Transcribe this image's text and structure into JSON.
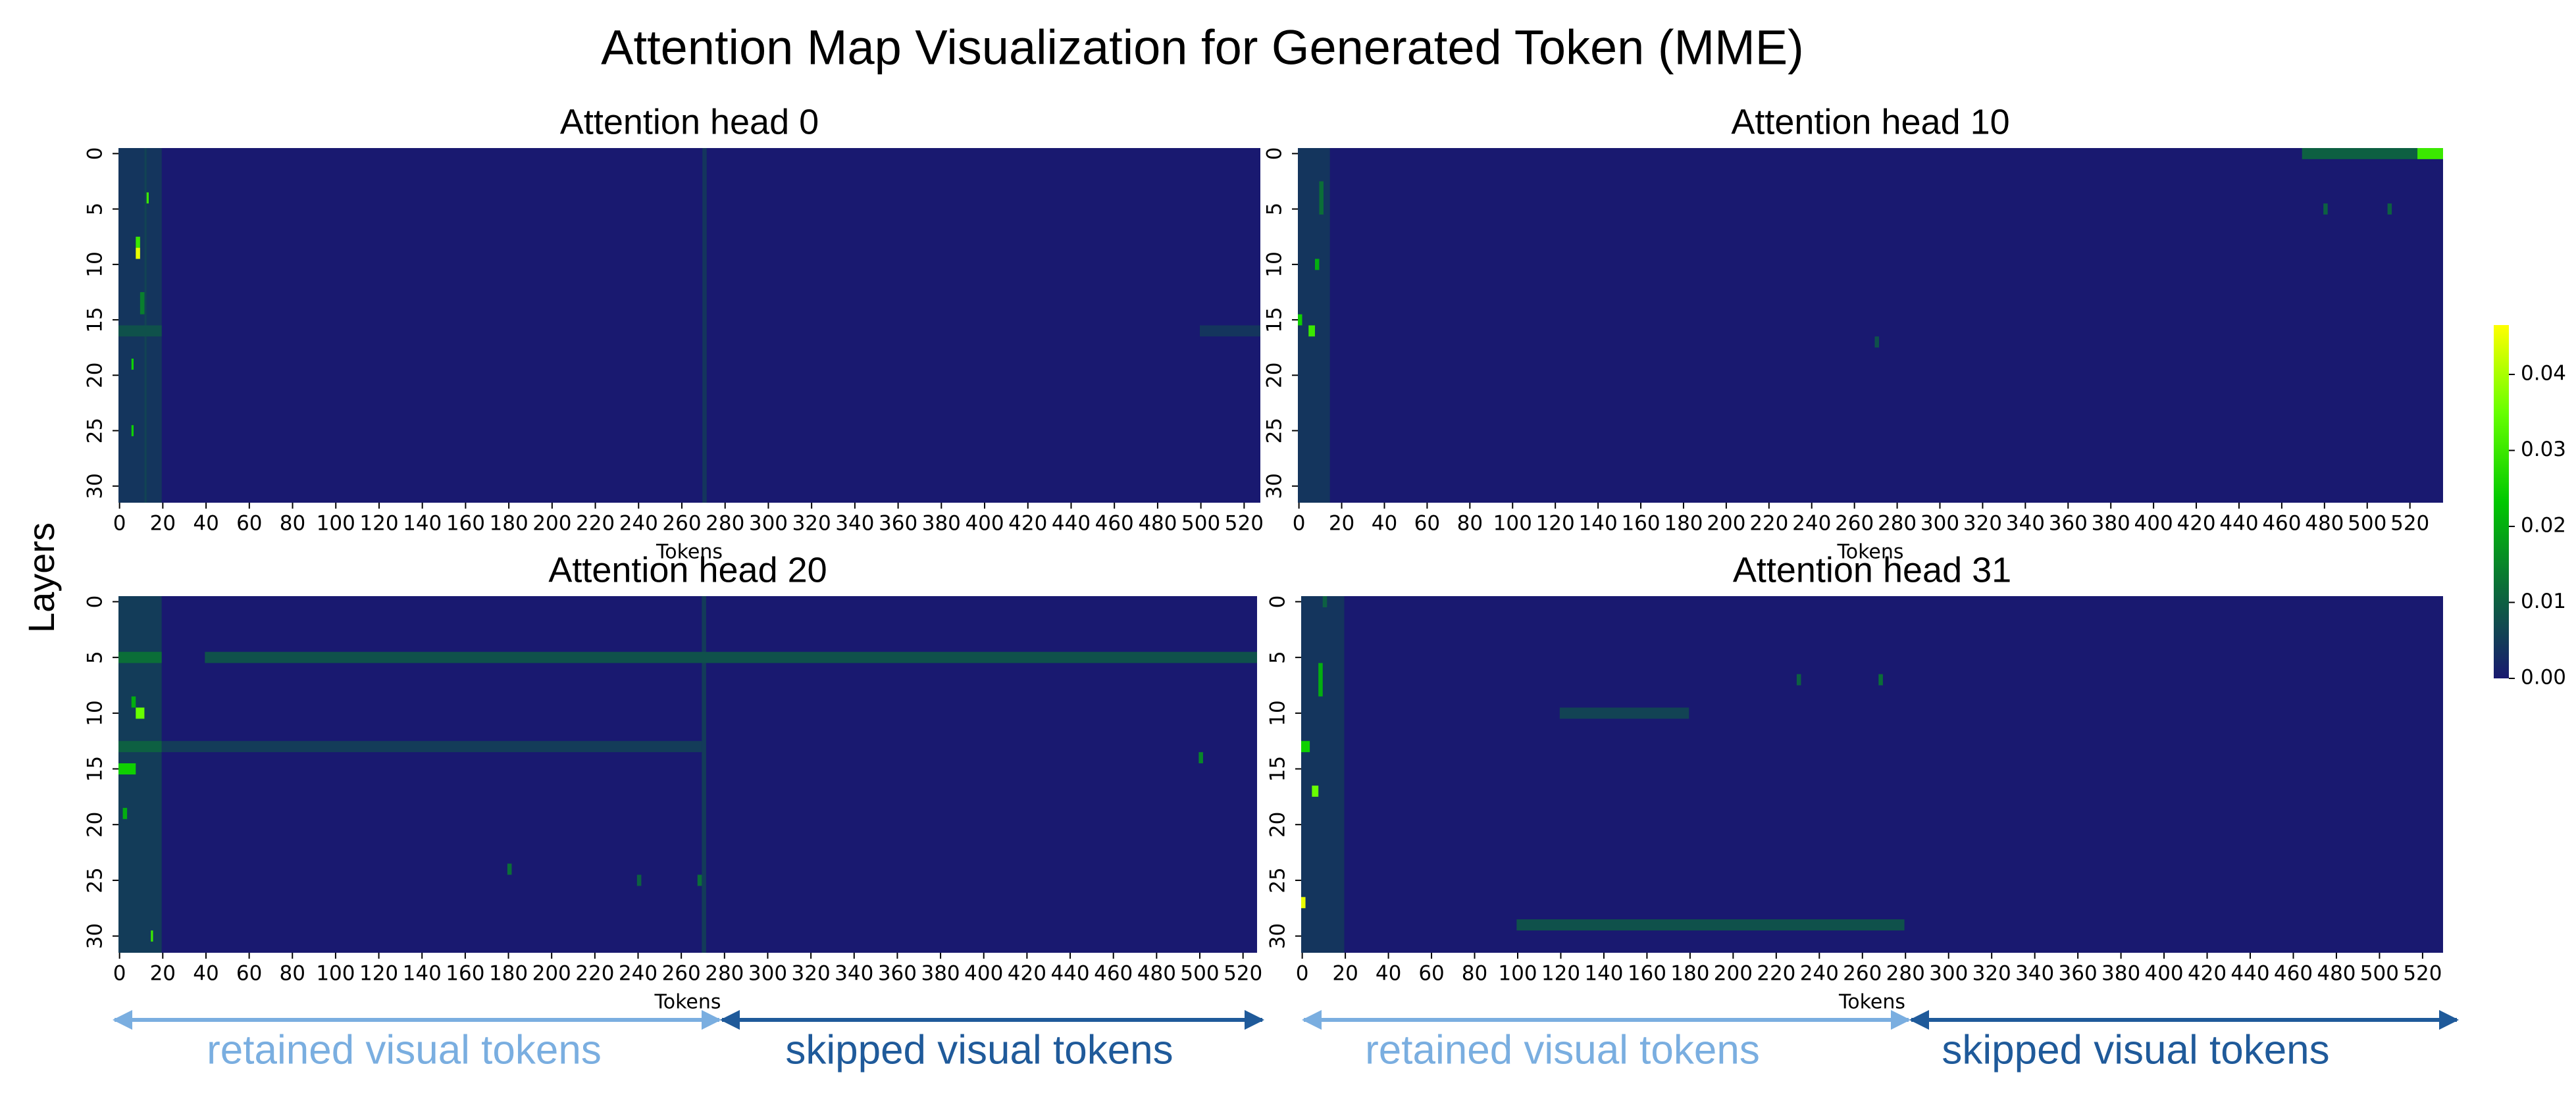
{
  "title": "Attention Map Visualization for Generated Token (MME)",
  "ylabel": "Layers",
  "colorbar": {
    "colors": [
      "#191970",
      "#0b6b3a",
      "#00c800",
      "#66ff00",
      "#ffff00"
    ],
    "lim": [
      0,
      0.0465
    ],
    "ticks": [
      {
        "value": 0,
        "label": "0.00"
      },
      {
        "value": 0.01,
        "label": "0.01"
      },
      {
        "value": 0.02,
        "label": "0.02"
      },
      {
        "value": 0.03,
        "label": "0.03"
      },
      {
        "value": 0.04,
        "label": "0.04"
      }
    ]
  },
  "chart_data": [
    {
      "type": "heatmap",
      "title": "Attention head 0",
      "xlabel": "Tokens",
      "xlim": [
        0,
        528
      ],
      "ylim": [
        32,
        0
      ],
      "xticks": [
        0,
        20,
        40,
        60,
        80,
        100,
        120,
        140,
        160,
        180,
        200,
        220,
        240,
        260,
        280,
        300,
        320,
        340,
        360,
        380,
        400,
        420,
        440,
        460,
        480,
        500,
        520
      ],
      "yticks": [
        0,
        5,
        10,
        15,
        20,
        25,
        30
      ],
      "cells": [
        {
          "x": [
            0,
            20
          ],
          "y": [
            0,
            32
          ],
          "value": 0.004
        },
        {
          "x": [
            12,
            13
          ],
          "y": [
            0,
            32
          ],
          "value": 0.006
        },
        {
          "x": [
            270,
            272
          ],
          "y": [
            0,
            32
          ],
          "value": 0.004
        },
        {
          "x": [
            0,
            20
          ],
          "y": [
            16,
            17
          ],
          "value": 0.008
        },
        {
          "x": [
            500,
            528
          ],
          "y": [
            16,
            17
          ],
          "value": 0.004
        },
        {
          "x": [
            10,
            12
          ],
          "y": [
            13,
            15
          ],
          "value": 0.014
        },
        {
          "x": [
            8,
            10
          ],
          "y": [
            8,
            9
          ],
          "value": 0.03
        },
        {
          "x": [
            8,
            10
          ],
          "y": [
            9,
            10
          ],
          "value": 0.045
        },
        {
          "x": [
            13,
            14
          ],
          "y": [
            4,
            5
          ],
          "value": 0.03
        },
        {
          "x": [
            6,
            7
          ],
          "y": [
            19,
            20
          ],
          "value": 0.025
        },
        {
          "x": [
            6,
            7
          ],
          "y": [
            25,
            26
          ],
          "value": 0.025
        }
      ]
    },
    {
      "type": "heatmap",
      "title": "Attention head 10",
      "xlabel": "Tokens",
      "xlim": [
        0,
        536
      ],
      "ylim": [
        32,
        0
      ],
      "xticks": [
        0,
        20,
        40,
        60,
        80,
        100,
        120,
        140,
        160,
        180,
        200,
        220,
        240,
        260,
        280,
        300,
        320,
        340,
        360,
        380,
        400,
        420,
        440,
        460,
        480,
        500,
        520
      ],
      "yticks": [
        0,
        5,
        10,
        15,
        20,
        25,
        30
      ],
      "cells": [
        {
          "x": [
            0,
            15
          ],
          "y": [
            0,
            32
          ],
          "value": 0.004
        },
        {
          "x": [
            470,
            524
          ],
          "y": [
            0,
            1
          ],
          "value": 0.01
        },
        {
          "x": [
            524,
            536
          ],
          "y": [
            0,
            1
          ],
          "value": 0.03
        },
        {
          "x": [
            10,
            12
          ],
          "y": [
            3,
            6
          ],
          "value": 0.012
        },
        {
          "x": [
            8,
            10
          ],
          "y": [
            10,
            11
          ],
          "value": 0.02
        },
        {
          "x": [
            0,
            2
          ],
          "y": [
            15,
            16
          ],
          "value": 0.025
        },
        {
          "x": [
            5,
            8
          ],
          "y": [
            16,
            17
          ],
          "value": 0.03
        },
        {
          "x": [
            270,
            272
          ],
          "y": [
            17,
            18
          ],
          "value": 0.008
        },
        {
          "x": [
            480,
            482
          ],
          "y": [
            5,
            6
          ],
          "value": 0.01
        },
        {
          "x": [
            510,
            512
          ],
          "y": [
            5,
            6
          ],
          "value": 0.01
        }
      ]
    },
    {
      "type": "heatmap",
      "title": "Attention head 20",
      "xlabel": "Tokens",
      "xlim": [
        0,
        527
      ],
      "ylim": [
        32,
        0
      ],
      "xticks": [
        0,
        20,
        40,
        60,
        80,
        100,
        120,
        140,
        160,
        180,
        200,
        220,
        240,
        260,
        280,
        300,
        320,
        340,
        360,
        380,
        400,
        420,
        440,
        460,
        480,
        500,
        520
      ],
      "yticks": [
        0,
        5,
        10,
        15,
        20,
        25,
        30
      ],
      "annotations": [
        "retained visual tokens",
        "skipped visual tokens"
      ],
      "cells": [
        {
          "x": [
            0,
            20
          ],
          "y": [
            0,
            32
          ],
          "value": 0.005
        },
        {
          "x": [
            270,
            272
          ],
          "y": [
            0,
            32
          ],
          "value": 0.005
        },
        {
          "x": [
            40,
            527
          ],
          "y": [
            5,
            6
          ],
          "value": 0.008
        },
        {
          "x": [
            0,
            20
          ],
          "y": [
            5,
            6
          ],
          "value": 0.012
        },
        {
          "x": [
            20,
            270
          ],
          "y": [
            13,
            14
          ],
          "value": 0.005
        },
        {
          "x": [
            0,
            20
          ],
          "y": [
            13,
            14
          ],
          "value": 0.01
        },
        {
          "x": [
            0,
            8
          ],
          "y": [
            15,
            16
          ],
          "value": 0.025
        },
        {
          "x": [
            6,
            8
          ],
          "y": [
            9,
            10
          ],
          "value": 0.02
        },
        {
          "x": [
            8,
            12
          ],
          "y": [
            10,
            11
          ],
          "value": 0.035
        },
        {
          "x": [
            15,
            16
          ],
          "y": [
            30,
            31
          ],
          "value": 0.03
        },
        {
          "x": [
            500,
            502
          ],
          "y": [
            14,
            15
          ],
          "value": 0.015
        },
        {
          "x": [
            2,
            4
          ],
          "y": [
            19,
            20
          ],
          "value": 0.02
        },
        {
          "x": [
            180,
            182
          ],
          "y": [
            24,
            25
          ],
          "value": 0.012
        },
        {
          "x": [
            240,
            242
          ],
          "y": [
            25,
            26
          ],
          "value": 0.01
        },
        {
          "x": [
            268,
            270
          ],
          "y": [
            25,
            26
          ],
          "value": 0.012
        }
      ]
    },
    {
      "type": "heatmap",
      "title": "Attention head 31",
      "xlabel": "Tokens",
      "xlim": [
        0,
        530
      ],
      "ylim": [
        32,
        0
      ],
      "xticks": [
        0,
        20,
        40,
        60,
        80,
        100,
        120,
        140,
        160,
        180,
        200,
        220,
        240,
        260,
        280,
        300,
        320,
        340,
        360,
        380,
        400,
        420,
        440,
        460,
        480,
        500,
        520
      ],
      "yticks": [
        0,
        5,
        10,
        15,
        20,
        25,
        30
      ],
      "annotations": [
        "retained visual tokens",
        "skipped visual tokens"
      ],
      "cells": [
        {
          "x": [
            0,
            20
          ],
          "y": [
            0,
            32
          ],
          "value": 0.004
        },
        {
          "x": [
            100,
            280
          ],
          "y": [
            29,
            30
          ],
          "value": 0.008
        },
        {
          "x": [
            120,
            180
          ],
          "y": [
            10,
            11
          ],
          "value": 0.006
        },
        {
          "x": [
            10,
            12
          ],
          "y": [
            0,
            1
          ],
          "value": 0.01
        },
        {
          "x": [
            8,
            10
          ],
          "y": [
            6,
            9
          ],
          "value": 0.02
        },
        {
          "x": [
            0,
            4
          ],
          "y": [
            13,
            14
          ],
          "value": 0.025
        },
        {
          "x": [
            5,
            8
          ],
          "y": [
            17,
            18
          ],
          "value": 0.035
        },
        {
          "x": [
            0,
            2
          ],
          "y": [
            27,
            28
          ],
          "value": 0.045
        },
        {
          "x": [
            230,
            232
          ],
          "y": [
            7,
            8
          ],
          "value": 0.01
        },
        {
          "x": [
            268,
            270
          ],
          "y": [
            7,
            8
          ],
          "value": 0.012
        }
      ]
    }
  ]
}
